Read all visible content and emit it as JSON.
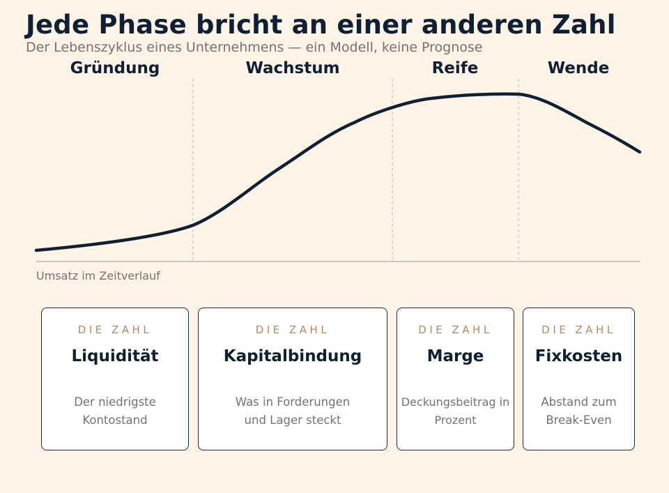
{
  "title": "Jede Phase bricht an einer anderen Zahl",
  "subtitle": "Der Lebenszyklus eines Unternehmens — ein Modell, keine Prognose",
  "axis_caption": "Umsatz im Zeitverlauf",
  "colors": {
    "background": "#fdf3e6",
    "ink": "#0f2035",
    "muted": "#7a6f74",
    "accent": "#b38a58",
    "divider": "#c9c4bd"
  },
  "phases": [
    {
      "name": "Gründung",
      "kicker": "DIE ZAHL",
      "metric": "Liquidität",
      "description": "Der niedrigste Kontostand"
    },
    {
      "name": "Wachstum",
      "kicker": "DIE ZAHL",
      "metric": "Kapitalbindung",
      "description": "Was in Forderungen und Lager steckt"
    },
    {
      "name": "Reife",
      "kicker": "DIE ZAHL",
      "metric": "Marge",
      "description": "Deckungsbeitrag in Prozent"
    },
    {
      "name": "Wende",
      "kicker": "DIE ZAHL",
      "metric": "Fixkosten",
      "description": "Abstand zum Break-Even"
    }
  ]
}
